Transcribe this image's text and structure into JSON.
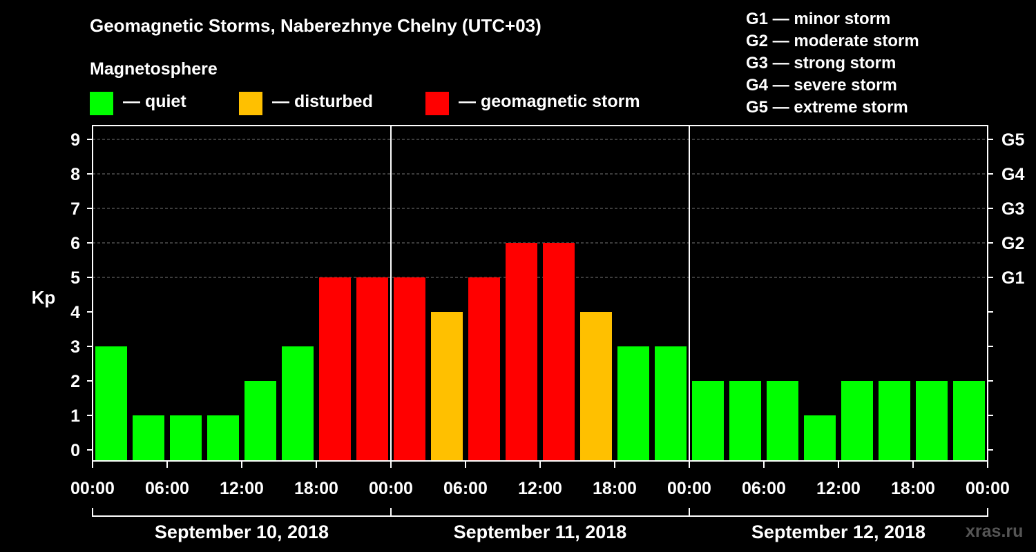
{
  "chart_data": {
    "type": "bar",
    "title": "Geomagnetic Storms, Naberezhnye Chelny (UTC+03)",
    "ylabel": "Kp",
    "ylim": [
      0,
      9
    ],
    "yticks": [
      "0",
      "1",
      "2",
      "3",
      "4",
      "5",
      "6",
      "7",
      "8",
      "9"
    ],
    "storm_levels": [
      {
        "kp": 5,
        "label": "G1"
      },
      {
        "kp": 6,
        "label": "G2"
      },
      {
        "kp": 7,
        "label": "G3"
      },
      {
        "kp": 8,
        "label": "G4"
      },
      {
        "kp": 9,
        "label": "G5"
      }
    ],
    "xtick_labels": [
      "00:00",
      "06:00",
      "12:00",
      "18:00",
      "00:00",
      "06:00",
      "12:00",
      "18:00",
      "00:00",
      "06:00",
      "12:00",
      "18:00",
      "00:00"
    ],
    "days": [
      "September 10, 2018",
      "September 11, 2018",
      "September 12, 2018"
    ],
    "interval_hours": 3,
    "values": [
      3,
      1,
      1,
      1,
      2,
      3,
      5,
      5,
      5,
      4,
      5,
      6,
      6,
      4,
      3,
      3,
      2,
      2,
      2,
      1,
      2,
      2,
      2,
      2
    ],
    "thresholds": {
      "disturbed": 4,
      "storm": 5
    },
    "colors": {
      "quiet": "#00ff00",
      "disturbed": "#ffc000",
      "storm": "#ff0000",
      "grid": "#777777",
      "axis": "#ffffff"
    }
  },
  "legend": {
    "magnetosphere_title": "Magnetosphere",
    "quiet_label": "— quiet",
    "disturbed_label": "— disturbed",
    "storm_label": "— geomagnetic storm"
  },
  "g_legend": [
    "G1 — minor storm",
    "G2 — moderate storm",
    "G3 — strong storm",
    "G4 — severe storm",
    "G5 — extreme storm"
  ],
  "watermark": "xras.ru"
}
